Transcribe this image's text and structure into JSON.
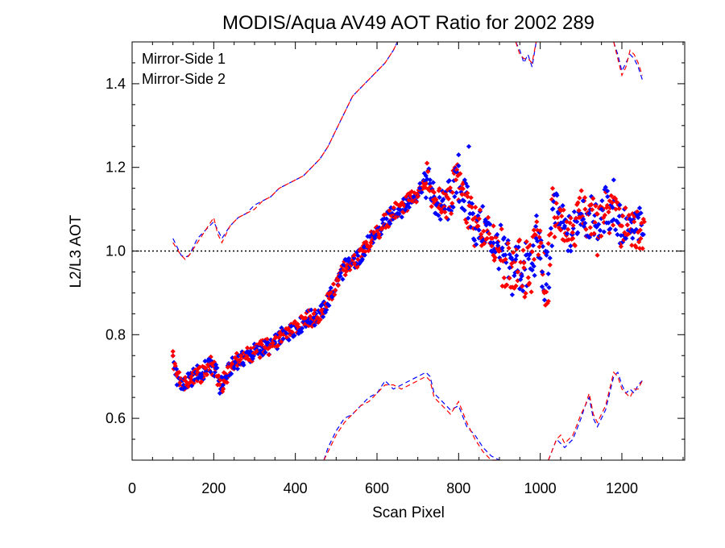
{
  "chart_data": {
    "type": "scatter",
    "title": "MODIS/Aqua AV49 AOT Ratio for 2002 289",
    "xlabel": "Scan Pixel",
    "ylabel": "L2/L3 AOT",
    "xlim": [
      0,
      1354
    ],
    "ylim": [
      0.5,
      1.5
    ],
    "xticks": [
      0,
      200,
      400,
      600,
      800,
      1000,
      1200
    ],
    "yticks": [
      0.6,
      0.8,
      1.0,
      1.2,
      1.4
    ],
    "xtick_labels": [
      "0",
      "200",
      "400",
      "600",
      "800",
      "1000",
      "1200"
    ],
    "ytick_labels": [
      "0.6",
      "0.8",
      "1.0",
      "1.2",
      "1.4"
    ],
    "reference_line": {
      "y": 1.0,
      "style": "dotted"
    },
    "grid": false,
    "legend": "top-left",
    "series_styles": {
      "Mirror-Side 1": {
        "color": "#0000ff"
      },
      "Mirror-Side 2": {
        "color": "#ff0000"
      }
    },
    "centerline": {
      "x": [
        100,
        110,
        120,
        130,
        140,
        150,
        160,
        170,
        180,
        190,
        200,
        210,
        220,
        230,
        240,
        250,
        260,
        270,
        280,
        290,
        300,
        310,
        320,
        330,
        340,
        350,
        360,
        370,
        380,
        390,
        400,
        410,
        420,
        430,
        440,
        450,
        460,
        470,
        480,
        490,
        500,
        510,
        520,
        530,
        540,
        550,
        560,
        570,
        580,
        590,
        600,
        610,
        620,
        630,
        640,
        650,
        660,
        670,
        680,
        690,
        700,
        710,
        720,
        730,
        740,
        750,
        760,
        770,
        780,
        790,
        800,
        810,
        820,
        830,
        840,
        850,
        860,
        870,
        880,
        890,
        900,
        910,
        920,
        930,
        940,
        950,
        960,
        970,
        980,
        990,
        1000,
        1010,
        1020,
        1030,
        1040,
        1050,
        1060,
        1070,
        1080,
        1090,
        1100,
        1110,
        1120,
        1130,
        1140,
        1150,
        1160,
        1170,
        1180,
        1190,
        1200,
        1210,
        1220,
        1230,
        1240,
        1250
      ],
      "y": [
        0.74,
        0.7,
        0.69,
        0.68,
        0.69,
        0.7,
        0.71,
        0.7,
        0.72,
        0.73,
        0.72,
        0.7,
        0.68,
        0.7,
        0.72,
        0.73,
        0.74,
        0.74,
        0.75,
        0.75,
        0.76,
        0.76,
        0.77,
        0.77,
        0.77,
        0.78,
        0.79,
        0.8,
        0.8,
        0.81,
        0.82,
        0.82,
        0.83,
        0.84,
        0.84,
        0.84,
        0.85,
        0.86,
        0.88,
        0.9,
        0.92,
        0.94,
        0.96,
        0.97,
        0.97,
        0.98,
        0.99,
        1.01,
        1.02,
        1.03,
        1.04,
        1.06,
        1.07,
        1.08,
        1.09,
        1.1,
        1.1,
        1.11,
        1.12,
        1.13,
        1.14,
        1.16,
        1.17,
        1.15,
        1.12,
        1.11,
        1.1,
        1.11,
        1.13,
        1.15,
        1.16,
        1.14,
        1.11,
        1.09,
        1.06,
        1.05,
        1.06,
        1.05,
        1.03,
        1.02,
        1.0,
        0.98,
        0.96,
        0.95,
        0.97,
        0.96,
        0.95,
        0.96,
        0.97,
        1.02,
        1.0,
        0.93,
        0.95,
        1.08,
        1.09,
        1.07,
        1.05,
        1.04,
        1.05,
        1.07,
        1.1,
        1.08,
        1.07,
        1.09,
        1.06,
        1.07,
        1.11,
        1.09,
        1.1,
        1.07,
        1.05,
        1.06,
        1.04,
        1.05,
        1.06,
        1.05
      ],
      "spread": 0.02
    },
    "envelope_series": [
      {
        "color": "#0000ff",
        "style": "dashed",
        "x": [
          100,
          120,
          130,
          140,
          160,
          180,
          200,
          210,
          220,
          240,
          260,
          280,
          300,
          320,
          340,
          360,
          380,
          400,
          420,
          440,
          460,
          480,
          500,
          520,
          540,
          560,
          580,
          600,
          620,
          640,
          650
        ],
        "y": [
          1.03,
          0.99,
          0.985,
          0.99,
          1.03,
          1.05,
          1.07,
          1.05,
          1.03,
          1.06,
          1.08,
          1.09,
          1.11,
          1.12,
          1.13,
          1.15,
          1.16,
          1.17,
          1.18,
          1.2,
          1.22,
          1.25,
          1.29,
          1.33,
          1.37,
          1.39,
          1.41,
          1.43,
          1.45,
          1.48,
          1.5
        ]
      },
      {
        "color": "#ff0000",
        "style": "dashed",
        "x": [
          100,
          120,
          130,
          140,
          160,
          180,
          200,
          210,
          220,
          240,
          260,
          280,
          300,
          320,
          340,
          360,
          380,
          400,
          420,
          440,
          460,
          480,
          500,
          520,
          540,
          560,
          580,
          600,
          620,
          640,
          650
        ],
        "y": [
          1.02,
          0.99,
          0.98,
          0.99,
          1.02,
          1.05,
          1.08,
          1.04,
          1.02,
          1.06,
          1.08,
          1.09,
          1.1,
          1.12,
          1.13,
          1.15,
          1.16,
          1.17,
          1.18,
          1.2,
          1.22,
          1.25,
          1.29,
          1.33,
          1.37,
          1.39,
          1.41,
          1.43,
          1.45,
          1.48,
          1.5
        ]
      },
      {
        "color": "#0000ff",
        "style": "dashed",
        "x": [
          940,
          950,
          960,
          970,
          980,
          990
        ],
        "y": [
          1.5,
          1.48,
          1.45,
          1.47,
          1.44,
          1.5
        ]
      },
      {
        "color": "#ff0000",
        "style": "dashed",
        "x": [
          940,
          950,
          960,
          970,
          980,
          990
        ],
        "y": [
          1.5,
          1.47,
          1.46,
          1.46,
          1.45,
          1.5
        ]
      },
      {
        "color": "#0000ff",
        "style": "dashed",
        "x": [
          1180,
          1190,
          1200,
          1210,
          1220,
          1230,
          1240,
          1250
        ],
        "y": [
          1.5,
          1.47,
          1.43,
          1.45,
          1.47,
          1.46,
          1.44,
          1.41
        ]
      },
      {
        "color": "#ff0000",
        "style": "dashed",
        "x": [
          1180,
          1190,
          1200,
          1210,
          1220,
          1230,
          1240,
          1250
        ],
        "y": [
          1.5,
          1.46,
          1.42,
          1.44,
          1.48,
          1.47,
          1.45,
          1.42
        ]
      },
      {
        "color": "#0000ff",
        "style": "dashed",
        "x": [
          470,
          480,
          500,
          520,
          540,
          560,
          580,
          600,
          620,
          640,
          660,
          680,
          700,
          720,
          730,
          740,
          760,
          780,
          800,
          820,
          840,
          860,
          880,
          900
        ],
        "y": [
          0.5,
          0.53,
          0.57,
          0.6,
          0.61,
          0.63,
          0.65,
          0.66,
          0.69,
          0.67,
          0.68,
          0.69,
          0.7,
          0.71,
          0.7,
          0.66,
          0.64,
          0.62,
          0.63,
          0.58,
          0.56,
          0.53,
          0.51,
          0.5
        ]
      },
      {
        "color": "#ff0000",
        "style": "dashed",
        "x": [
          470,
          480,
          500,
          520,
          540,
          560,
          580,
          600,
          620,
          640,
          660,
          680,
          700,
          720,
          730,
          740,
          760,
          780,
          800,
          820,
          840,
          860,
          880,
          900
        ],
        "y": [
          0.5,
          0.52,
          0.56,
          0.59,
          0.61,
          0.63,
          0.64,
          0.66,
          0.68,
          0.68,
          0.67,
          0.68,
          0.69,
          0.7,
          0.69,
          0.65,
          0.63,
          0.61,
          0.64,
          0.59,
          0.55,
          0.52,
          0.5,
          0.5
        ]
      },
      {
        "color": "#0000ff",
        "style": "dashed",
        "x": [
          1020,
          1040,
          1050,
          1060,
          1080,
          1100,
          1110,
          1120,
          1130,
          1140,
          1160,
          1170,
          1180,
          1190,
          1200,
          1210,
          1220,
          1230,
          1240,
          1250
        ],
        "y": [
          0.5,
          0.55,
          0.54,
          0.53,
          0.55,
          0.6,
          0.63,
          0.65,
          0.6,
          0.58,
          0.62,
          0.66,
          0.7,
          0.71,
          0.68,
          0.66,
          0.67,
          0.66,
          0.68,
          0.69
        ]
      },
      {
        "color": "#ff0000",
        "style": "dashed",
        "x": [
          1020,
          1040,
          1050,
          1060,
          1080,
          1100,
          1110,
          1120,
          1130,
          1140,
          1160,
          1170,
          1180,
          1190,
          1200,
          1210,
          1220,
          1230,
          1240,
          1250
        ],
        "y": [
          0.5,
          0.55,
          0.56,
          0.54,
          0.56,
          0.61,
          0.63,
          0.66,
          0.61,
          0.59,
          0.63,
          0.67,
          0.71,
          0.7,
          0.67,
          0.66,
          0.65,
          0.67,
          0.67,
          0.69
        ]
      }
    ],
    "series": [
      {
        "name": "Mirror-Side 1",
        "color": "#0000ff",
        "points": [
          [
            110,
            0.68
          ],
          [
            125,
            0.67
          ],
          [
            140,
            0.7
          ],
          [
            155,
            0.71
          ],
          [
            170,
            0.7
          ],
          [
            190,
            0.74
          ],
          [
            205,
            0.72
          ],
          [
            215,
            0.66
          ],
          [
            230,
            0.7
          ],
          [
            250,
            0.72
          ],
          [
            270,
            0.73
          ],
          [
            290,
            0.76
          ],
          [
            310,
            0.76
          ],
          [
            330,
            0.78
          ],
          [
            350,
            0.78
          ],
          [
            370,
            0.79
          ],
          [
            390,
            0.82
          ],
          [
            410,
            0.81
          ],
          [
            430,
            0.83
          ],
          [
            450,
            0.85
          ],
          [
            470,
            0.86
          ],
          [
            490,
            0.89
          ],
          [
            510,
            0.94
          ],
          [
            530,
            0.96
          ],
          [
            550,
            0.97
          ],
          [
            570,
            0.99
          ],
          [
            590,
            1.02
          ],
          [
            610,
            1.04
          ],
          [
            630,
            1.07
          ],
          [
            650,
            1.09
          ],
          [
            670,
            1.1
          ],
          [
            690,
            1.13
          ],
          [
            705,
            1.15
          ],
          [
            720,
            1.18
          ],
          [
            730,
            1.17
          ],
          [
            745,
            1.11
          ],
          [
            760,
            1.12
          ],
          [
            775,
            1.1
          ],
          [
            790,
            1.13
          ],
          [
            800,
            1.23
          ],
          [
            815,
            1.17
          ],
          [
            825,
            1.25
          ],
          [
            835,
            1.09
          ],
          [
            850,
            1.05
          ],
          [
            865,
            1.07
          ],
          [
            880,
            1.0
          ],
          [
            895,
            1.02
          ],
          [
            910,
            0.99
          ],
          [
            925,
            0.96
          ],
          [
            940,
            0.98
          ],
          [
            955,
            0.94
          ],
          [
            965,
            0.99
          ],
          [
            980,
            0.97
          ],
          [
            990,
            1.03
          ],
          [
            1005,
            0.95
          ],
          [
            1015,
            0.92
          ],
          [
            1030,
            1.1
          ],
          [
            1045,
            1.09
          ],
          [
            1060,
            1.06
          ],
          [
            1075,
            1.0
          ],
          [
            1090,
            1.07
          ],
          [
            1105,
            1.12
          ],
          [
            1120,
            1.09
          ],
          [
            1135,
            1.06
          ],
          [
            1150,
            1.1
          ],
          [
            1165,
            1.13
          ],
          [
            1180,
            1.17
          ],
          [
            1195,
            1.11
          ],
          [
            1210,
            1.03
          ],
          [
            1225,
            1.05
          ],
          [
            1240,
            1.08
          ],
          [
            1250,
            1.04
          ]
        ]
      },
      {
        "name": "Mirror-Side 2",
        "color": "#ff0000",
        "points": [
          [
            100,
            0.76
          ],
          [
            115,
            0.71
          ],
          [
            130,
            0.69
          ],
          [
            145,
            0.7
          ],
          [
            160,
            0.71
          ],
          [
            180,
            0.72
          ],
          [
            195,
            0.73
          ],
          [
            210,
            0.7
          ],
          [
            225,
            0.69
          ],
          [
            245,
            0.73
          ],
          [
            265,
            0.74
          ],
          [
            285,
            0.74
          ],
          [
            305,
            0.76
          ],
          [
            325,
            0.77
          ],
          [
            345,
            0.78
          ],
          [
            365,
            0.8
          ],
          [
            385,
            0.81
          ],
          [
            405,
            0.82
          ],
          [
            425,
            0.84
          ],
          [
            445,
            0.85
          ],
          [
            465,
            0.86
          ],
          [
            485,
            0.9
          ],
          [
            505,
            0.93
          ],
          [
            525,
            0.96
          ],
          [
            545,
            0.97
          ],
          [
            565,
            1.0
          ],
          [
            585,
            1.02
          ],
          [
            605,
            1.04
          ],
          [
            625,
            1.06
          ],
          [
            645,
            1.08
          ],
          [
            665,
            1.11
          ],
          [
            685,
            1.12
          ],
          [
            700,
            1.13
          ],
          [
            715,
            1.16
          ],
          [
            725,
            1.19
          ],
          [
            740,
            1.14
          ],
          [
            755,
            1.1
          ],
          [
            770,
            1.08
          ],
          [
            785,
            1.14
          ],
          [
            798,
            1.18
          ],
          [
            810,
            1.16
          ],
          [
            822,
            1.13
          ],
          [
            840,
            1.08
          ],
          [
            855,
            1.04
          ],
          [
            870,
            1.03
          ],
          [
            885,
            0.99
          ],
          [
            900,
            1.0
          ],
          [
            915,
            0.98
          ],
          [
            930,
            0.97
          ],
          [
            945,
            0.95
          ],
          [
            960,
            0.96
          ],
          [
            972,
            0.92
          ],
          [
            985,
            0.98
          ],
          [
            998,
            1.01
          ],
          [
            1010,
            0.9
          ],
          [
            1020,
            0.88
          ],
          [
            1035,
            1.08
          ],
          [
            1050,
            1.05
          ],
          [
            1065,
            1.07
          ],
          [
            1080,
            1.03
          ],
          [
            1095,
            1.08
          ],
          [
            1110,
            1.1
          ],
          [
            1125,
            1.04
          ],
          [
            1140,
            0.99
          ],
          [
            1155,
            1.08
          ],
          [
            1170,
            1.12
          ],
          [
            1185,
            1.1
          ],
          [
            1200,
            1.06
          ],
          [
            1215,
            1.04
          ],
          [
            1230,
            1.07
          ],
          [
            1245,
            1.05
          ],
          [
            1255,
            1.07
          ]
        ]
      }
    ]
  }
}
